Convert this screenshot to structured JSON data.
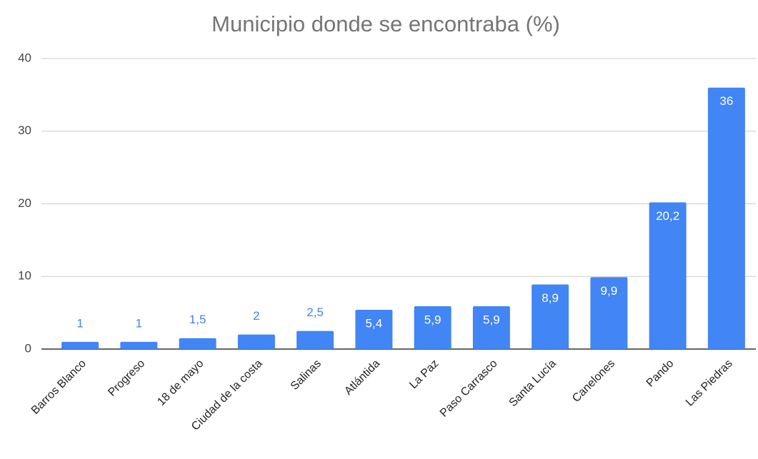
{
  "chart_data": {
    "type": "bar",
    "title": "Municipio donde se encontraba (%)",
    "categories": [
      "Barros Blanco",
      "Progreso",
      "18 de mayo",
      "Ciudad de la costa",
      "Salinas",
      "Atlántida",
      "La Paz",
      "Paso Carrasco",
      "Santa Lucía",
      "Canelones",
      "Pando",
      "Las Piedras"
    ],
    "values": [
      1,
      1,
      1.5,
      2,
      2.5,
      5.4,
      5.9,
      5.9,
      8.9,
      9.9,
      20.2,
      36
    ],
    "value_labels": [
      "1",
      "1",
      "1,5",
      "2",
      "2,5",
      "5,4",
      "5,9",
      "5,9",
      "8,9",
      "9,9",
      "20,2",
      "36"
    ],
    "color": "#4285f4",
    "ylim": [
      0,
      40
    ],
    "yticks": [
      0,
      10,
      20,
      30,
      40
    ],
    "grid": true
  }
}
